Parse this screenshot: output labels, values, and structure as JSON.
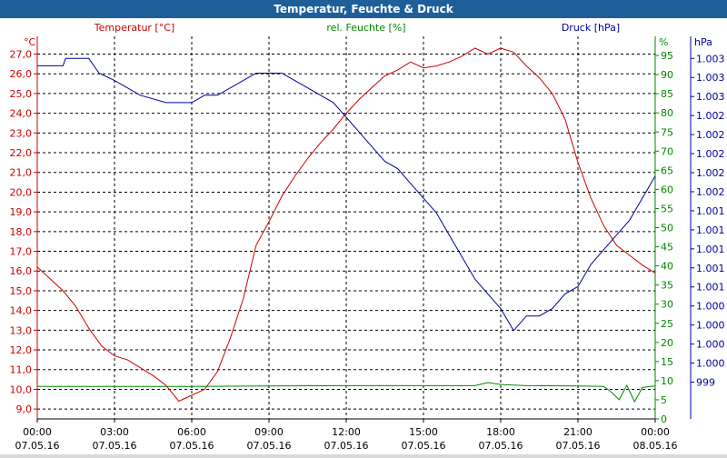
{
  "window": {
    "title": "Temperatur, Feuchte & Druck"
  },
  "colors": {
    "temperature": "#cc0000",
    "humidity": "#008800",
    "pressure": "#000099",
    "grid": "#000000",
    "titlebar": "#1f5f99"
  },
  "chart_data": {
    "type": "line",
    "title": "Temperatur, Feuchte & Druck",
    "grid": true,
    "x": {
      "hours": [
        0,
        3,
        6,
        9,
        12,
        15,
        18,
        21,
        24
      ],
      "times": [
        "00:00",
        "03:00",
        "06:00",
        "09:00",
        "12:00",
        "15:00",
        "18:00",
        "21:00",
        "00:00"
      ],
      "dates": [
        "07.05.16",
        "07.05.16",
        "07.05.16",
        "07.05.16",
        "07.05.16",
        "07.05.16",
        "07.05.16",
        "07.05.16",
        "08.05.16"
      ],
      "range": [
        0,
        24
      ]
    },
    "axes": {
      "temperature": {
        "unit": "°C",
        "range": [
          8.5,
          27.9
        ],
        "ticks": [
          "9,0",
          "10,0",
          "11,0",
          "12,0",
          "13,0",
          "14,0",
          "15,0",
          "16,0",
          "17,0",
          "18,0",
          "19,0",
          "20,0",
          "21,0",
          "22,0",
          "23,0",
          "24,0",
          "25,0",
          "26,0",
          "27,0"
        ]
      },
      "humidity": {
        "unit": "%",
        "range": [
          0,
          100
        ],
        "ticks": [
          "0",
          "5",
          "10",
          "15",
          "20",
          "25",
          "30",
          "35",
          "40",
          "45",
          "50",
          "55",
          "60",
          "65",
          "70",
          "75",
          "80",
          "85",
          "90",
          "95"
        ]
      },
      "pressure": {
        "unit": "hPa",
        "range": [
          998.5,
          1003.7
        ],
        "ticks": [
          "999",
          "1.000",
          "1.000",
          "1.000",
          "1.000",
          "1.001",
          "1.001",
          "1.001",
          "1.001",
          "1.001",
          "1.002",
          "1.002",
          "1.002",
          "1.002",
          "1.002",
          "1.003",
          "1.003",
          "1.003"
        ]
      }
    },
    "series": [
      {
        "name": "Temperatur [°C]",
        "axis": "temperature",
        "points": [
          [
            0,
            16.2
          ],
          [
            0.5,
            15.6
          ],
          [
            1,
            15
          ],
          [
            1.5,
            14.2
          ],
          [
            2,
            13.1
          ],
          [
            2.5,
            12.2
          ],
          [
            3,
            11.7
          ],
          [
            3.5,
            11.5
          ],
          [
            4,
            11.1
          ],
          [
            4.5,
            10.7
          ],
          [
            5,
            10.2
          ],
          [
            5.5,
            9.4
          ],
          [
            6,
            9.7
          ],
          [
            6.5,
            10
          ],
          [
            7,
            10.9
          ],
          [
            7.5,
            12.6
          ],
          [
            8,
            14.6
          ],
          [
            8.5,
            17.3
          ],
          [
            9,
            18.5
          ],
          [
            9.5,
            19.8
          ],
          [
            10,
            20.8
          ],
          [
            10.5,
            21.7
          ],
          [
            11,
            22.5
          ],
          [
            11.5,
            23.2
          ],
          [
            12,
            24
          ],
          [
            12.5,
            24.7
          ],
          [
            13,
            25.3
          ],
          [
            13.5,
            25.9
          ],
          [
            14,
            26.2
          ],
          [
            14.5,
            26.6
          ],
          [
            15,
            26.3
          ],
          [
            15.5,
            26.4
          ],
          [
            16,
            26.6
          ],
          [
            16.5,
            26.9
          ],
          [
            17,
            27.3
          ],
          [
            17.5,
            27
          ],
          [
            18,
            27.3
          ],
          [
            18.5,
            27.1
          ],
          [
            19,
            26.4
          ],
          [
            19.5,
            25.8
          ],
          [
            20,
            25
          ],
          [
            20.5,
            23.7
          ],
          [
            21,
            21.5
          ],
          [
            21.5,
            19.7
          ],
          [
            22,
            18.3
          ],
          [
            22.5,
            17.3
          ],
          [
            23,
            16.8
          ],
          [
            23.5,
            16.3
          ],
          [
            24,
            15.9
          ]
        ]
      },
      {
        "name": "rel. Feuchte [%]",
        "axis": "humidity",
        "points": [
          [
            0,
            8.5
          ],
          [
            3,
            8.5
          ],
          [
            6,
            8.5
          ],
          [
            9,
            8.6
          ],
          [
            12,
            8.7
          ],
          [
            15,
            8.7
          ],
          [
            17,
            8.7
          ],
          [
            17.5,
            9.5
          ],
          [
            18,
            9
          ],
          [
            19,
            8.7
          ],
          [
            21,
            8.6
          ],
          [
            22,
            8.5
          ],
          [
            22.3,
            7
          ],
          [
            22.6,
            5
          ],
          [
            22.9,
            8.8
          ],
          [
            23.2,
            4.5
          ],
          [
            23.5,
            8.2
          ],
          [
            23.8,
            8.5
          ],
          [
            24,
            8.6
          ]
        ]
      },
      {
        "name": "Druck [hPa]",
        "axis": "pressure",
        "points": [
          [
            0,
            1003.3
          ],
          [
            1,
            1003.3
          ],
          [
            1.1,
            1003.4
          ],
          [
            2,
            1003.4
          ],
          [
            2.4,
            1003.2
          ],
          [
            3,
            1003.1
          ],
          [
            3.5,
            1003
          ],
          [
            4,
            1002.9
          ],
          [
            5,
            1002.8
          ],
          [
            6,
            1002.8
          ],
          [
            6.5,
            1002.9
          ],
          [
            7,
            1002.9
          ],
          [
            7.5,
            1003
          ],
          [
            8,
            1003.1
          ],
          [
            8.5,
            1003.2
          ],
          [
            9,
            1003.2
          ],
          [
            9.5,
            1003.2
          ],
          [
            10,
            1003.1
          ],
          [
            10.5,
            1003
          ],
          [
            11,
            1002.9
          ],
          [
            11.5,
            1002.8
          ],
          [
            12,
            1002.6
          ],
          [
            12.5,
            1002.4
          ],
          [
            13,
            1002.2
          ],
          [
            13.5,
            1002
          ],
          [
            14,
            1001.9
          ],
          [
            14.5,
            1001.7
          ],
          [
            15,
            1001.5
          ],
          [
            15.5,
            1001.3
          ],
          [
            16,
            1001
          ],
          [
            16.5,
            1000.7
          ],
          [
            17,
            1000.4
          ],
          [
            17.5,
            1000.2
          ],
          [
            18,
            1000
          ],
          [
            18.5,
            999.7
          ],
          [
            19,
            999.9
          ],
          [
            19.5,
            999.9
          ],
          [
            20,
            1000
          ],
          [
            20.5,
            1000.2
          ],
          [
            21,
            1000.3
          ],
          [
            21.5,
            1000.6
          ],
          [
            22,
            1000.8
          ],
          [
            22.5,
            1001
          ],
          [
            23,
            1001.2
          ],
          [
            23.5,
            1001.5
          ],
          [
            24,
            1001.8
          ]
        ]
      }
    ]
  }
}
